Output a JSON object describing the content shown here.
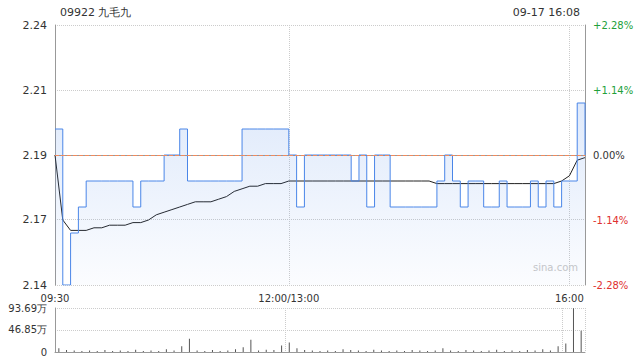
{
  "chart_data": [
    {
      "type": "line",
      "title": "09922 九毛九",
      "subtitle": "09-17 16:08",
      "annotations": [
        "sina.com"
      ],
      "categories": [
        "09:30",
        null,
        null,
        null,
        null,
        null,
        null,
        null,
        null,
        null,
        null,
        null,
        null,
        null,
        null,
        null,
        null,
        null,
        null,
        null,
        null,
        null,
        null,
        null,
        null,
        null,
        null,
        null,
        null,
        null,
        "12:00/13:00",
        null,
        null,
        null,
        null,
        null,
        null,
        null,
        null,
        null,
        null,
        null,
        null,
        null,
        null,
        null,
        null,
        null,
        null,
        null,
        null,
        null,
        null,
        null,
        null,
        null,
        null,
        null,
        null,
        null,
        null,
        null,
        null,
        null,
        null,
        null,
        "16:00",
        null,
        null
      ],
      "series": [
        {
          "type": "area",
          "color": "#4a86e8",
          "marker": "none",
          "line_style": "solid",
          "values": [
            2.2,
            2.14,
            2.16,
            2.17,
            2.18,
            2.18,
            2.18,
            2.18,
            2.18,
            2.18,
            2.17,
            2.18,
            2.18,
            2.18,
            2.19,
            2.19,
            2.2,
            2.18,
            2.18,
            2.18,
            2.18,
            2.18,
            2.18,
            2.18,
            2.2,
            2.2,
            2.2,
            2.2,
            2.2,
            2.2,
            2.19,
            2.17,
            2.19,
            2.19,
            2.19,
            2.19,
            2.19,
            2.19,
            2.18,
            2.19,
            2.17,
            2.19,
            2.19,
            2.17,
            2.17,
            2.17,
            2.17,
            2.17,
            2.17,
            2.18,
            2.19,
            2.18,
            2.17,
            2.18,
            2.18,
            2.17,
            2.17,
            2.18,
            2.17,
            2.17,
            2.17,
            2.18,
            2.17,
            2.18,
            2.17,
            2.18,
            2.18,
            2.21,
            2.19
          ]
        },
        {
          "type": "line",
          "color": "#222222",
          "marker": "none",
          "line_style": "solid",
          "values": [
            2.19,
            2.165,
            2.161,
            2.161,
            2.161,
            2.162,
            2.162,
            2.163,
            2.163,
            2.163,
            2.164,
            2.164,
            2.165,
            2.167,
            2.168,
            2.169,
            2.17,
            2.171,
            2.172,
            2.172,
            2.172,
            2.173,
            2.174,
            2.176,
            2.177,
            2.178,
            2.178,
            2.179,
            2.179,
            2.179,
            2.18,
            2.18,
            2.18,
            2.18,
            2.18,
            2.18,
            2.18,
            2.18,
            2.18,
            2.18,
            2.18,
            2.18,
            2.18,
            2.18,
            2.18,
            2.18,
            2.18,
            2.18,
            2.18,
            2.179,
            2.179,
            2.179,
            2.179,
            2.179,
            2.179,
            2.179,
            2.179,
            2.179,
            2.179,
            2.179,
            2.179,
            2.179,
            2.179,
            2.179,
            2.179,
            2.18,
            2.182,
            2.188,
            2.189
          ]
        }
      ],
      "reference_line": {
        "value": 2.19,
        "color": "#f08a5d",
        "line_style": "dashed"
      },
      "ylim": [
        2.14,
        2.24
      ],
      "yticks": [
        2.14,
        {
          "value": 2.1651,
          "label": "2.17"
        },
        2.19,
        {
          "value": 2.2149,
          "label": "2.21"
        },
        2.24
      ],
      "y2lim": [
        -2.28,
        2.28
      ],
      "y2ticks": [
        {
          "value": -2.28,
          "label": "-2.28%"
        },
        {
          "value": -1.14,
          "label": "-1.14%"
        },
        {
          "value": 0,
          "label": "0.00%"
        },
        {
          "value": 1.14,
          "label": "+1.14%"
        },
        {
          "value": 2.28,
          "label": "+2.28%"
        }
      ],
      "grid": true
    },
    {
      "type": "bar",
      "categories": [
        "09:30",
        null,
        null,
        null,
        null,
        null,
        null,
        null,
        null,
        null,
        null,
        null,
        null,
        null,
        null,
        null,
        null,
        null,
        null,
        null,
        null,
        null,
        null,
        null,
        null,
        null,
        null,
        null,
        null,
        null,
        "12:00/13:00",
        null,
        null,
        null,
        null,
        null,
        null,
        null,
        null,
        null,
        null,
        null,
        null,
        null,
        null,
        null,
        null,
        null,
        null,
        null,
        null,
        null,
        null,
        null,
        null,
        null,
        null,
        null,
        null,
        null,
        null,
        null,
        null,
        null,
        null,
        null,
        "16:00",
        null,
        null
      ],
      "values": [
        8,
        4,
        3,
        2,
        3,
        2,
        4,
        2,
        3,
        2,
        5,
        2,
        3,
        2,
        6,
        3,
        12,
        28,
        3,
        2,
        4,
        2,
        3,
        6,
        10,
        26,
        3,
        5,
        4,
        14,
        20,
        8,
        4,
        3,
        2,
        3,
        2,
        6,
        4,
        3,
        2,
        5,
        3,
        2,
        3,
        2,
        4,
        3,
        2,
        3,
        8,
        3,
        2,
        4,
        3,
        2,
        3,
        5,
        2,
        3,
        2,
        4,
        3,
        6,
        3,
        12,
        18,
        93,
        45
      ],
      "color": "#555555",
      "ylim": [
        0,
        93.69
      ],
      "yticks": [
        0,
        {
          "value": 46.85,
          "label": "46.85万"
        },
        {
          "value": 93.69,
          "label": "93.69万"
        }
      ],
      "tick_labels": "y",
      "grid": true
    }
  ]
}
